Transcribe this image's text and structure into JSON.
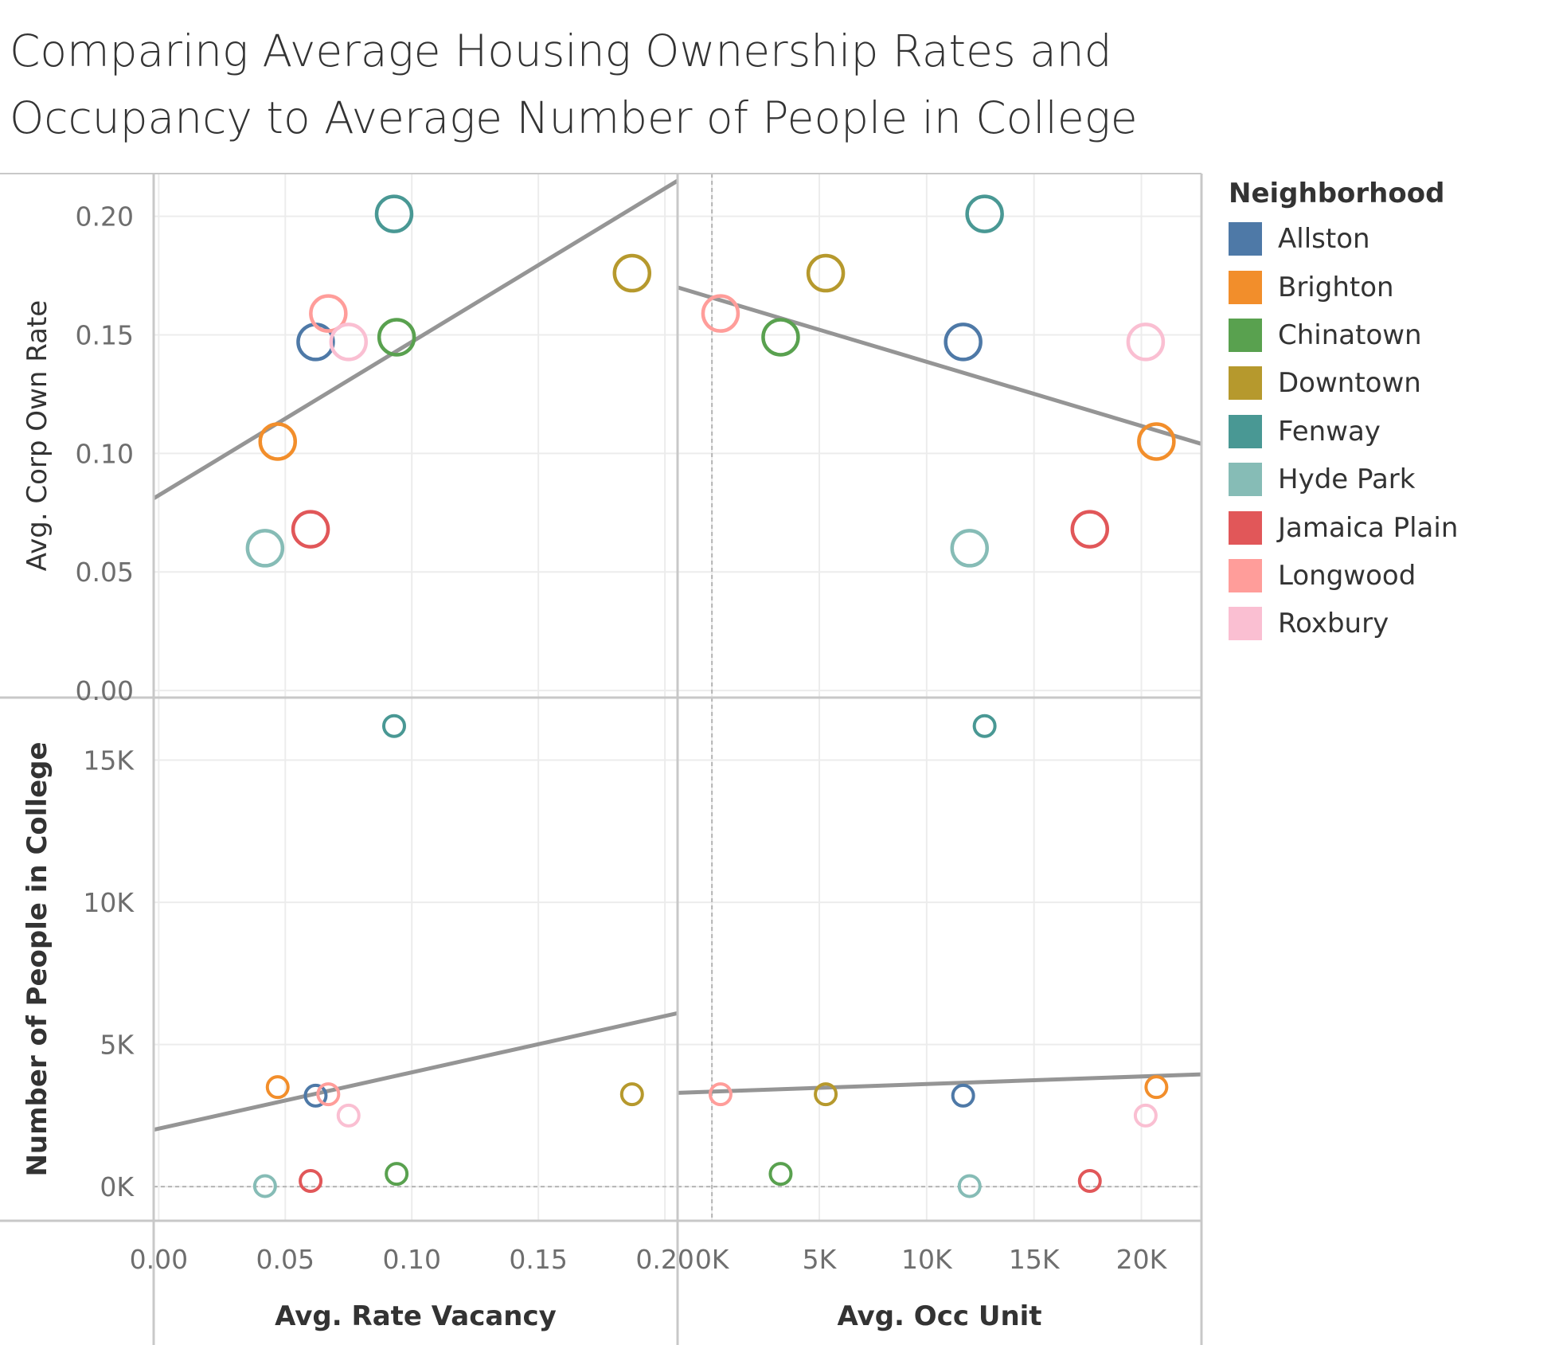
{
  "title": {
    "line1": "Comparing Average Housing Ownership Rates and",
    "line2": "Occupancy to Average Number of People in College"
  },
  "legend": {
    "title": "Neighborhood",
    "items": [
      {
        "label": "Allston",
        "color": "#4e79a7"
      },
      {
        "label": "Brighton",
        "color": "#f28e2b"
      },
      {
        "label": "Chinatown",
        "color": "#59a14f"
      },
      {
        "label": "Downtown",
        "color": "#b6992d"
      },
      {
        "label": "Fenway",
        "color": "#499894"
      },
      {
        "label": "Hyde Park",
        "color": "#86bcb6"
      },
      {
        "label": "Jamaica Plain",
        "color": "#e15759"
      },
      {
        "label": "Longwood",
        "color": "#ff9d9a"
      },
      {
        "label": "Roxbury",
        "color": "#fabfd2"
      }
    ]
  },
  "chart_data": {
    "type": "scatter",
    "layout": "2x2 scatter matrix with linear trend lines",
    "x_axes": [
      {
        "label": "Avg. Rate Vacancy",
        "range": [
          -0.002,
          0.205
        ],
        "ticks": [
          0.0,
          0.05,
          0.1,
          0.15,
          0.2
        ],
        "tick_labels": [
          "0.00",
          "0.05",
          "0.10",
          "0.15",
          "0.20"
        ]
      },
      {
        "label": "Avg. Occ Unit",
        "range": [
          -1600,
          22800
        ],
        "ticks": [
          0,
          5000,
          10000,
          15000,
          20000
        ],
        "tick_labels": [
          "0K",
          "5K",
          "10K",
          "15K",
          "20K"
        ]
      }
    ],
    "y_axes": [
      {
        "label": "Avg. Corp Own Rate",
        "range": [
          -0.003,
          0.218
        ],
        "ticks": [
          0.0,
          0.05,
          0.1,
          0.15,
          0.2
        ],
        "tick_labels": [
          "0.00",
          "0.05",
          "0.10",
          "0.15",
          "0.20"
        ]
      },
      {
        "label": "Number of People in College",
        "range": [
          -1200,
          17200
        ],
        "ticks": [
          0,
          5000,
          10000,
          15000
        ],
        "tick_labels": [
          "0K",
          "5K",
          "10K",
          "15K"
        ]
      }
    ],
    "series": [
      {
        "name": "Allston",
        "color": "#4e79a7",
        "rate_vacancy": 0.062,
        "occ_unit": 11700,
        "corp_own_rate": 0.147,
        "people_in_college": 3200
      },
      {
        "name": "Brighton",
        "color": "#f28e2b",
        "rate_vacancy": 0.047,
        "occ_unit": 20700,
        "corp_own_rate": 0.105,
        "people_in_college": 3500
      },
      {
        "name": "Chinatown",
        "color": "#59a14f",
        "rate_vacancy": 0.094,
        "occ_unit": 3200,
        "corp_own_rate": 0.149,
        "people_in_college": 450
      },
      {
        "name": "Downtown",
        "color": "#b6992d",
        "rate_vacancy": 0.187,
        "occ_unit": 5300,
        "corp_own_rate": 0.176,
        "people_in_college": 3250
      },
      {
        "name": "Fenway",
        "color": "#499894",
        "rate_vacancy": 0.093,
        "occ_unit": 12700,
        "corp_own_rate": 0.201,
        "people_in_college": 16200
      },
      {
        "name": "Hyde Park",
        "color": "#86bcb6",
        "rate_vacancy": 0.042,
        "occ_unit": 12000,
        "corp_own_rate": 0.06,
        "people_in_college": 20
      },
      {
        "name": "Jamaica Plain",
        "color": "#e15759",
        "rate_vacancy": 0.06,
        "occ_unit": 17600,
        "corp_own_rate": 0.068,
        "people_in_college": 200
      },
      {
        "name": "Longwood",
        "color": "#ff9d9a",
        "rate_vacancy": 0.067,
        "occ_unit": 400,
        "corp_own_rate": 0.159,
        "people_in_college": 3250
      },
      {
        "name": "Roxbury",
        "color": "#fabfd2",
        "rate_vacancy": 0.075,
        "occ_unit": 20200,
        "corp_own_rate": 0.147,
        "people_in_college": 2500
      }
    ],
    "trend_lines": [
      {
        "x_field": "rate_vacancy",
        "y_field": "corp_own_rate",
        "from": [
          -0.002,
          0.081
        ],
        "to": [
          0.205,
          0.215
        ]
      },
      {
        "x_field": "occ_unit",
        "y_field": "corp_own_rate",
        "from": [
          -1600,
          0.17
        ],
        "to": [
          22800,
          0.104
        ]
      },
      {
        "x_field": "rate_vacancy",
        "y_field": "people_in_college",
        "from": [
          -0.002,
          2000
        ],
        "to": [
          0.205,
          6100
        ]
      },
      {
        "x_field": "occ_unit",
        "y_field": "people_in_college",
        "from": [
          -1600,
          3300
        ],
        "to": [
          22800,
          3950
        ]
      }
    ],
    "grid": true,
    "legend_position": "right"
  }
}
